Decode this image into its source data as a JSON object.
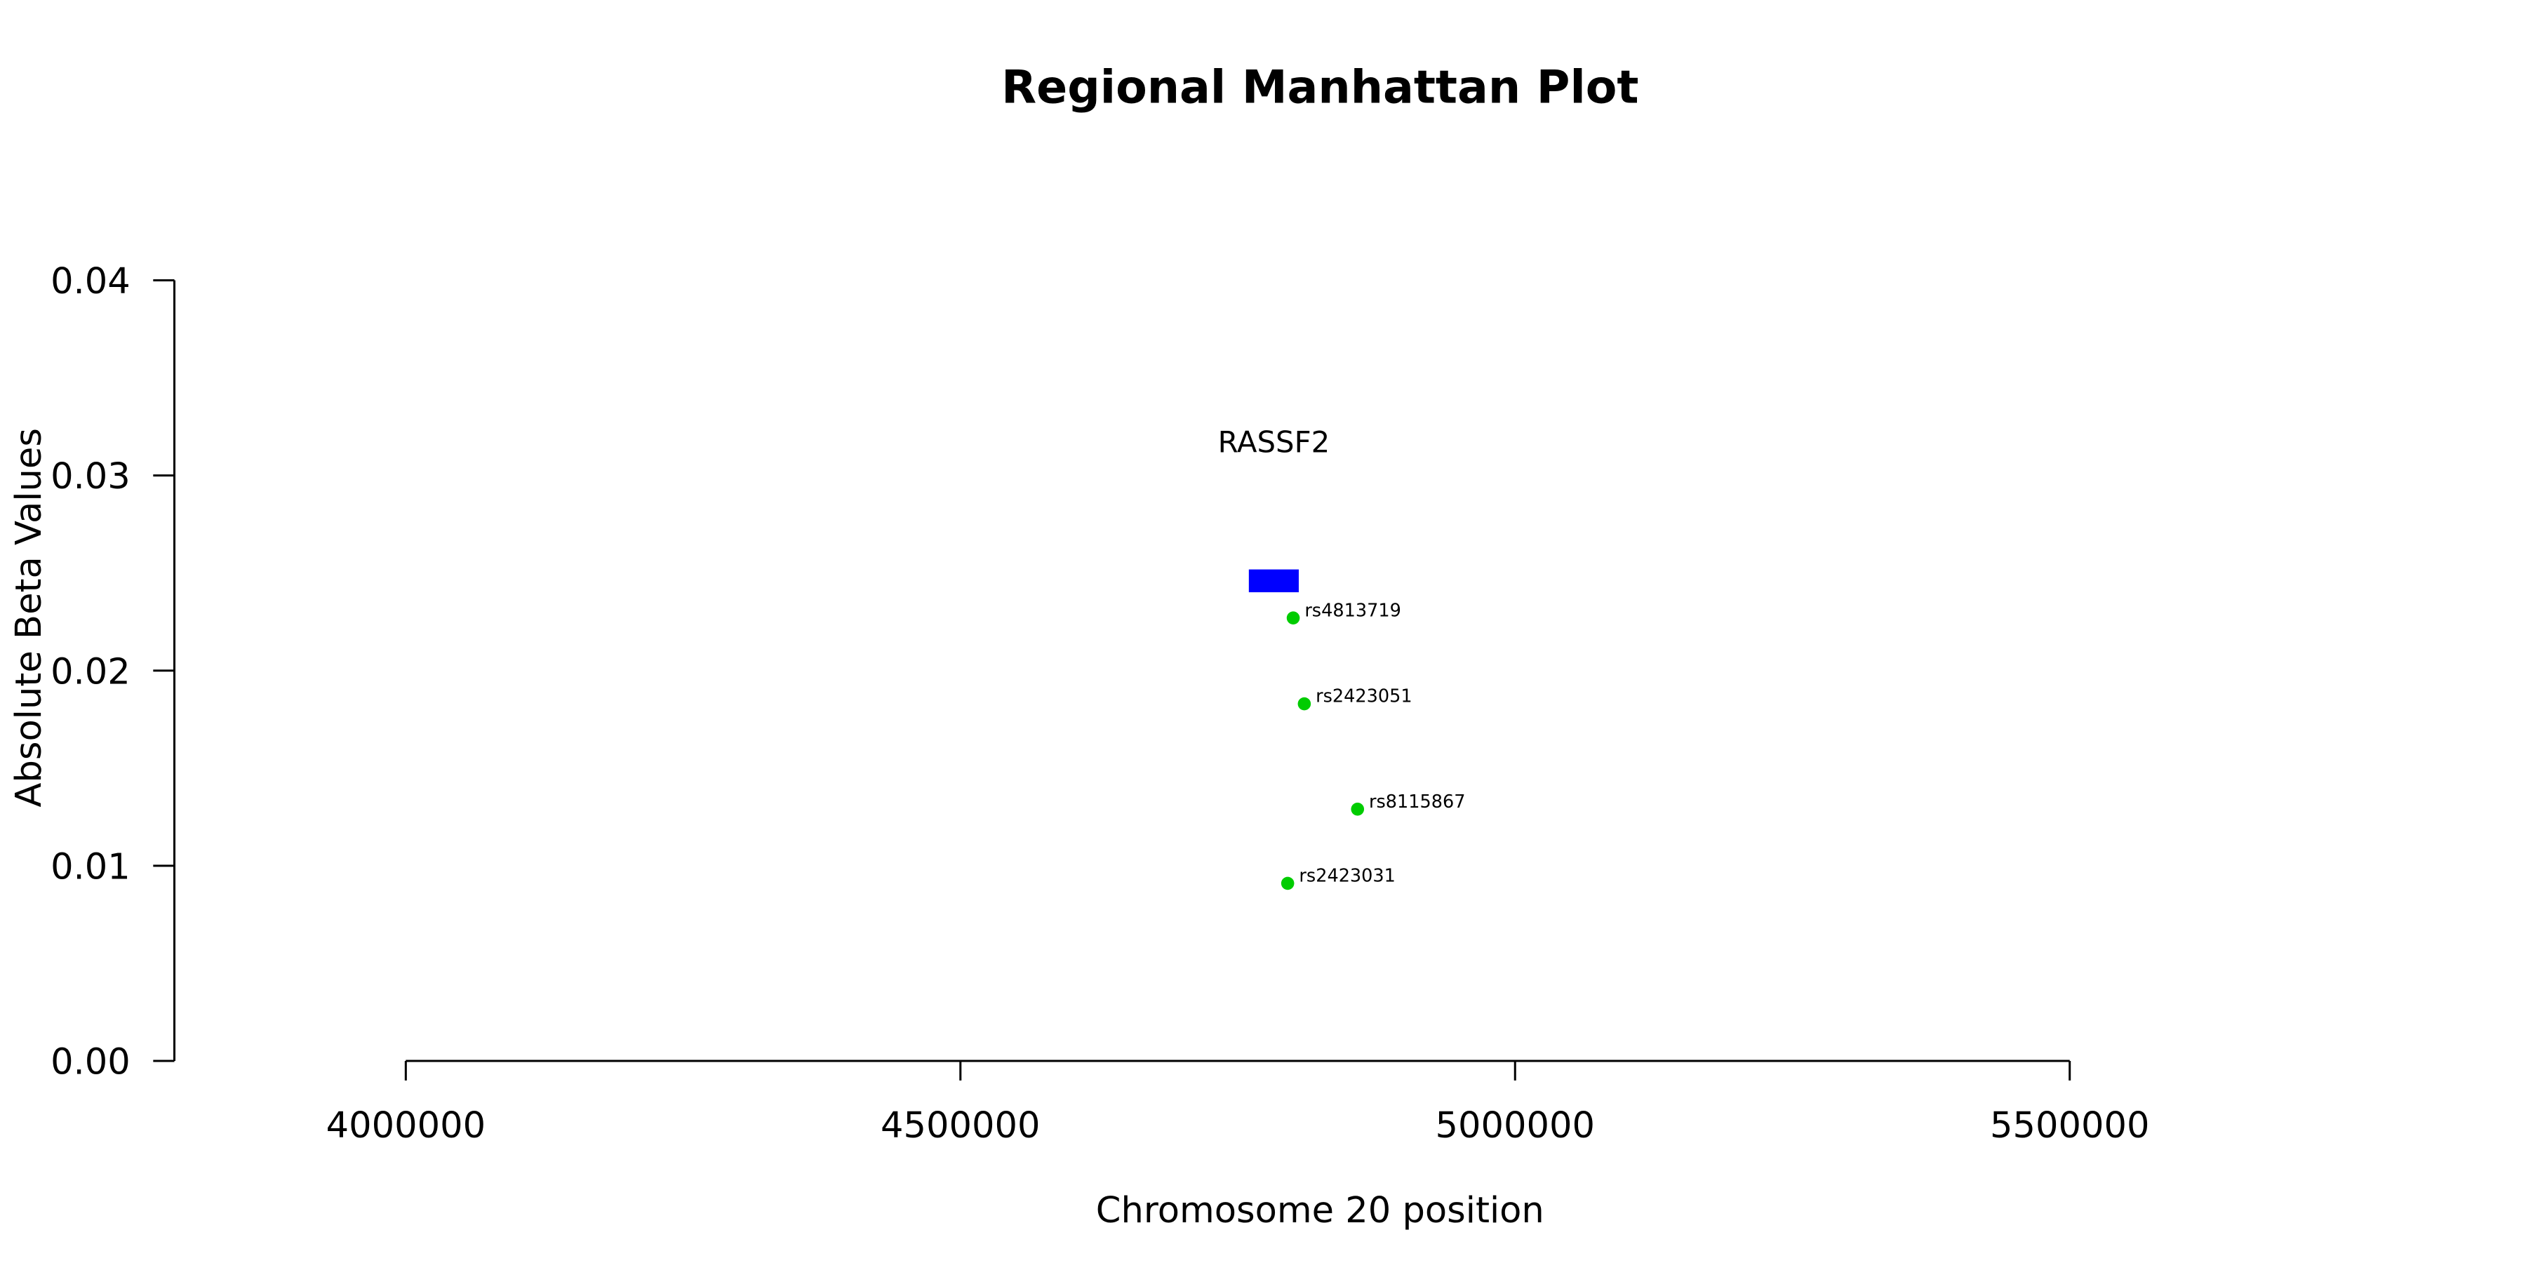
{
  "chart_data": {
    "type": "scatter",
    "title": "Regional Manhattan Plot",
    "xlabel": "Chromosome 20 position",
    "ylabel": "Absolute Beta Values",
    "xlim": [
      4000000,
      5500000
    ],
    "ylim": [
      0,
      0.04
    ],
    "x_ticks": [
      4000000,
      4500000,
      5000000,
      5500000
    ],
    "x_tick_labels": [
      "4000000",
      "4500000",
      "5000000",
      "5500000"
    ],
    "y_ticks": [
      0,
      0.01,
      0.02,
      0.03,
      0.04
    ],
    "y_tick_labels": [
      "0.00",
      "0.01",
      "0.02",
      "0.03",
      "0.04"
    ],
    "grid": false,
    "points": [
      {
        "label": "rs4813719",
        "x": 4800000,
        "y": 0.0227
      },
      {
        "label": "rs2423051",
        "x": 4810000,
        "y": 0.0183
      },
      {
        "label": "rs8115867",
        "x": 4858000,
        "y": 0.0129
      },
      {
        "label": "rs2423031",
        "x": 4795000,
        "y": 0.0091
      }
    ],
    "genes": [
      {
        "name": "RASSF2",
        "start": 4760000,
        "end": 4805000,
        "y": 0.0246
      }
    ],
    "point_color": "#00cc00",
    "gene_color": "#0000ff"
  }
}
